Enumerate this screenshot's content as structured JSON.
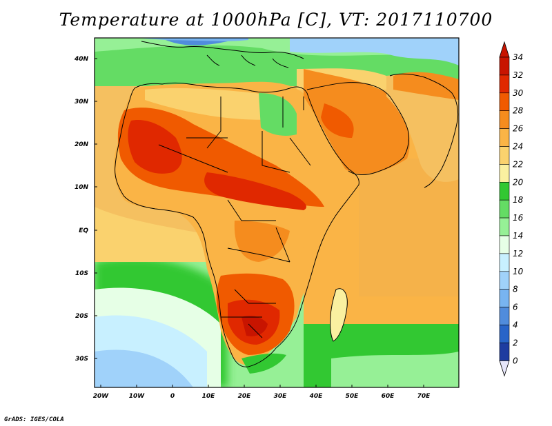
{
  "title": "Temperature at 1000hPa [C], VT: 2017110700",
  "footer": "GrADS: IGES/COLA",
  "map": {
    "lat_labels": [
      "40N",
      "30N",
      "20N",
      "10N",
      "EQ",
      "10S",
      "20S",
      "30S"
    ],
    "lon_labels": [
      "20W",
      "10W",
      "0",
      "10E",
      "20E",
      "30E",
      "40E",
      "50E",
      "60E",
      "70E"
    ]
  },
  "colorbar": {
    "labels": [
      "34",
      "32",
      "30",
      "28",
      "26",
      "24",
      "22",
      "20",
      "18",
      "16",
      "14",
      "12",
      "10",
      "8",
      "6",
      "4",
      "2",
      "0"
    ],
    "colors": [
      "#c81400",
      "#e02800",
      "#f05a00",
      "#f58c1e",
      "#fab446",
      "#fad26e",
      "#faf0a0",
      "#32c832",
      "#64dc64",
      "#96f096",
      "#e6ffe6",
      "#c8f0ff",
      "#a0d2fa",
      "#78b4f0",
      "#508cdc",
      "#2864c8",
      "#1e3ca0",
      "#0a1464"
    ]
  },
  "colors": {
    "ocean_warm": "#f5b24a",
    "ocean_cool": "#b8e2f8",
    "coast": "#000000"
  }
}
